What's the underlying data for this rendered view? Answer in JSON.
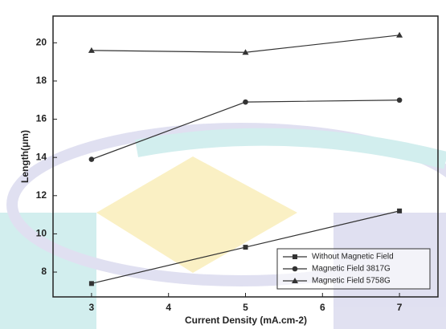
{
  "chart_data": {
    "type": "line",
    "x": [
      3,
      5,
      7
    ],
    "series": [
      {
        "name": "Without Magnetic Field",
        "color": "#333333",
        "marker": "square",
        "values": [
          7.4,
          9.3,
          11.2
        ]
      },
      {
        "name": "Magnetic Field 3817G",
        "color": "#333333",
        "marker": "circle",
        "values": [
          13.9,
          16.9,
          17.0
        ]
      },
      {
        "name": "Magnetic Field 5758G",
        "color": "#333333",
        "marker": "triangle",
        "values": [
          19.6,
          19.5,
          20.4
        ]
      }
    ],
    "x_label": "Current Density (mA.cm-2)",
    "y_label": "Length(μm)",
    "xlim": [
      2.5,
      7.5
    ],
    "xticks": [
      3,
      4,
      5,
      6,
      7
    ],
    "ylim": [
      6.7,
      21.4
    ],
    "yticks": [
      8,
      10,
      12,
      14,
      16,
      18,
      20
    ],
    "legend": "lower right"
  }
}
